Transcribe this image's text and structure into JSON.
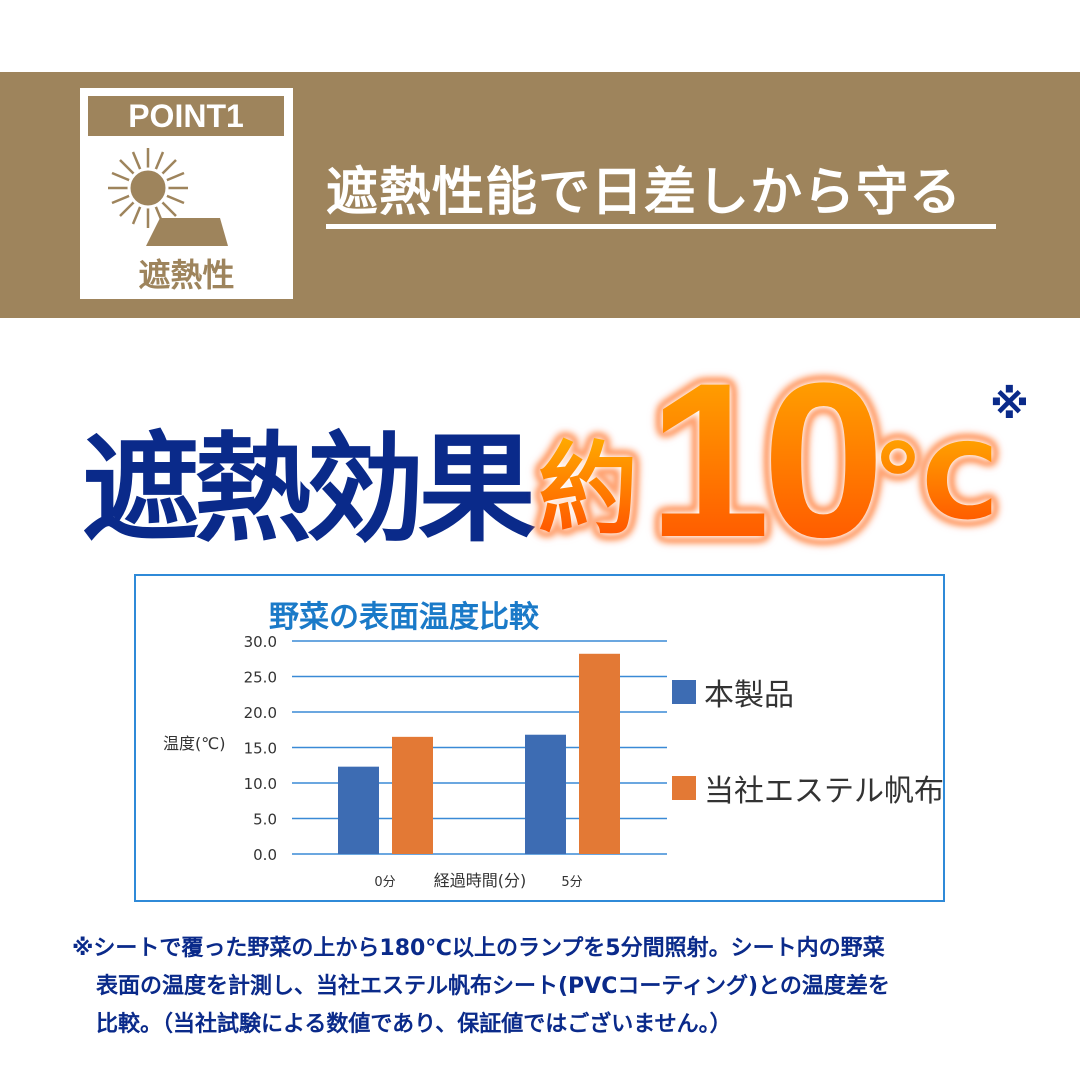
{
  "badge": {
    "label": "POINT1",
    "sub": "遮熱性",
    "icon": "sun-roof-icon"
  },
  "headline": "遮熱性能で日差しから守る",
  "hero": {
    "text": "遮熱効果",
    "prefix": "約",
    "number": "10",
    "unit": "℃",
    "mark": "※"
  },
  "colors": {
    "band": "#9e845c",
    "navy": "#0a2a8a",
    "orange": "#ff6a00",
    "series1": "#3d6cb3",
    "series2": "#e37935"
  },
  "chart_data": {
    "type": "bar",
    "title": "野菜の表面温度比較",
    "xlabel": "経過時間(分)",
    "ylabel": "温度(℃)",
    "categories": [
      "0分",
      "5分"
    ],
    "ylim": [
      0,
      30
    ],
    "yticks": [
      "0.0",
      "5.0",
      "10.0",
      "15.0",
      "20.0",
      "25.0",
      "30.0"
    ],
    "grid": true,
    "legend_position": "right",
    "series": [
      {
        "name": "本製品",
        "values": [
          12.3,
          16.8
        ]
      },
      {
        "name": "当社エステル帆布",
        "values": [
          16.5,
          28.2
        ]
      }
    ]
  },
  "note": [
    "※シートで覆った野菜の上から180℃以上のランプを5分間照射。シート内の野菜",
    "表面の温度を計測し、当社エステル帆布シート(PVCコーティング)との温度差を",
    "比較。（当社試験による数値であり、保証値ではございません。）"
  ]
}
